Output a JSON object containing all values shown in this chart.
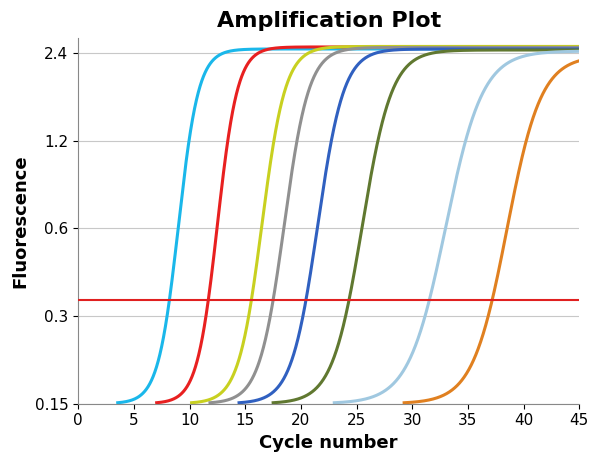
{
  "title": "Amplification Plot",
  "xlabel": "Cycle number",
  "ylabel": "Fluorescence",
  "xlim": [
    0,
    45
  ],
  "ylim_log": [
    0.15,
    2.7
  ],
  "yticks": [
    0.15,
    0.3,
    0.6,
    1.2,
    2.4
  ],
  "ytick_labels": [
    "0.15",
    "0.3",
    "0.6",
    "1.2",
    "2.4"
  ],
  "xticks": [
    0,
    5,
    10,
    15,
    20,
    25,
    30,
    35,
    40,
    45
  ],
  "threshold_y": 0.34,
  "threshold_color": "#e02020",
  "background_color": "#ffffff",
  "grid_color": "#c8c8c8",
  "curves": [
    {
      "color": "#1ab7ea",
      "x0": 9.0,
      "steepness": 1.1,
      "ymax": 2.48,
      "ymin": 0.15
    },
    {
      "color": "#e82020",
      "x0": 12.5,
      "steepness": 1.1,
      "ymax": 2.52,
      "ymin": 0.15
    },
    {
      "color": "#c8d020",
      "x0": 16.5,
      "steepness": 0.95,
      "ymax": 2.53,
      "ymin": 0.15
    },
    {
      "color": "#909090",
      "x0": 18.5,
      "steepness": 0.9,
      "ymax": 2.51,
      "ymin": 0.15
    },
    {
      "color": "#3060c0",
      "x0": 21.5,
      "steepness": 0.85,
      "ymax": 2.48,
      "ymin": 0.15
    },
    {
      "color": "#607830",
      "x0": 25.5,
      "steepness": 0.75,
      "ymax": 2.46,
      "ymin": 0.15
    },
    {
      "color": "#a0c8e0",
      "x0": 33.0,
      "steepness": 0.6,
      "ymax": 2.44,
      "ymin": 0.15
    },
    {
      "color": "#e08020",
      "x0": 38.5,
      "steepness": 0.65,
      "ymax": 2.35,
      "ymin": 0.15
    }
  ],
  "title_fontsize": 16,
  "axis_label_fontsize": 13,
  "tick_fontsize": 11
}
